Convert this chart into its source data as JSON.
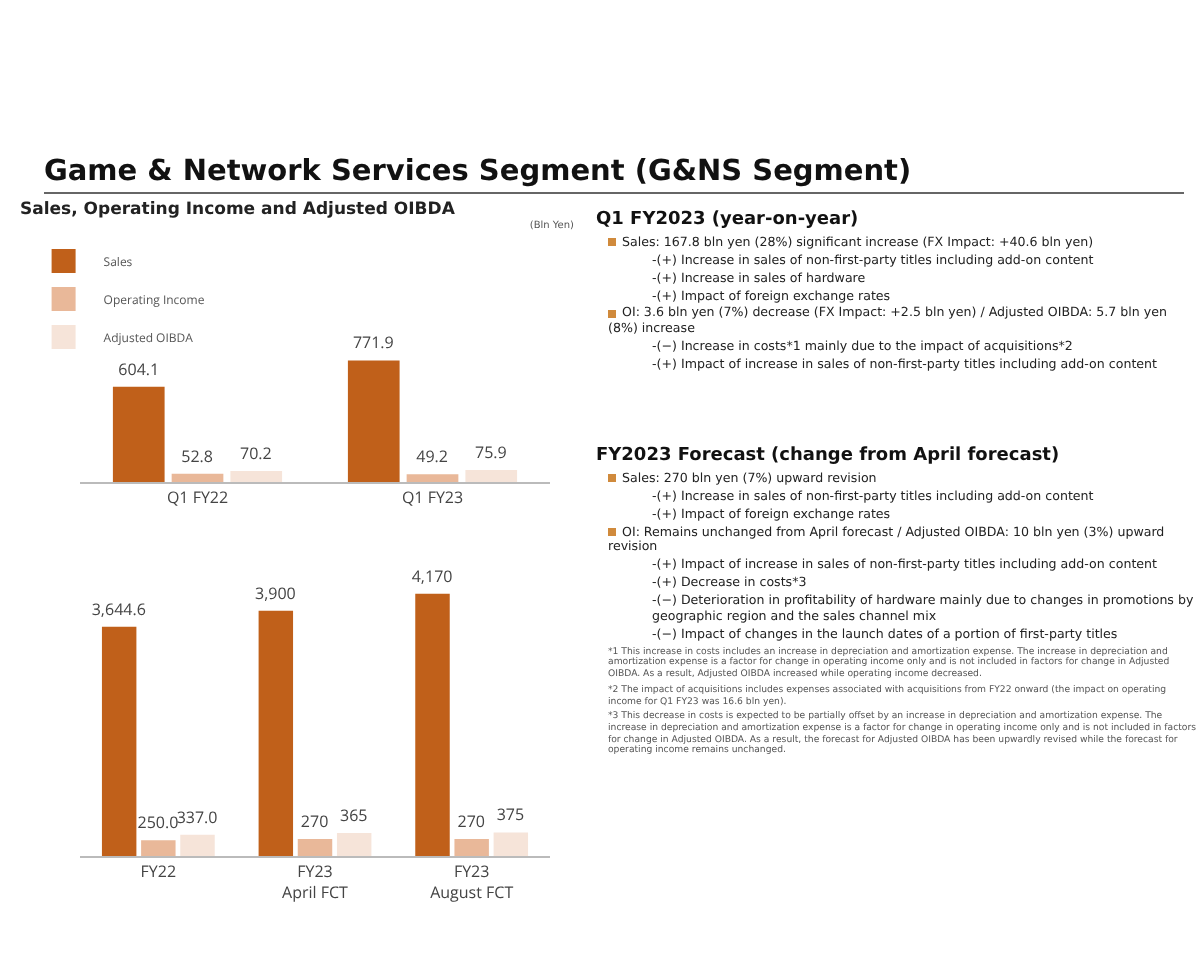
{
  "chart_data": [
    {
      "type": "bar",
      "title": "Game & Network Services Segment (G&NS Segment)",
      "subtitle": "Sales, Operating Income and Adjusted OIBDA",
      "annotations": [
        "(Bln Yen)"
      ],
      "categories": [
        "Q1 FY22",
        "Q1 FY23"
      ],
      "series": [
        {
          "name": "Sales",
          "color": "#c0601a",
          "values": [
            604.1,
            771.9
          ]
        },
        {
          "name": "Operating Income",
          "color": "#e9b899",
          "values": [
            52.8,
            49.2
          ]
        },
        {
          "name": "Adjusted OIBDA",
          "color": "#f6e4d9",
          "values": [
            70.2,
            75.9
          ]
        }
      ],
      "data_labels": true,
      "legend": "top left",
      "tick_labels": "x"
    },
    {
      "type": "bar",
      "categories": [
        "FY22",
        "FY23 April FCT",
        "FY23 August FCT"
      ],
      "series": [
        {
          "color": "#c0601a",
          "values": [
            3644.6,
            3900,
            4170
          ],
          "value_labels": [
            "3,644.6",
            "3,900",
            "4,170"
          ]
        },
        {
          "color": "#e9b899",
          "values": [
            250,
            270,
            270
          ],
          "value_labels": [
            "250.0",
            "270",
            "270"
          ]
        },
        {
          "color": "#f6e4d9",
          "values": [
            337,
            365,
            375
          ],
          "value_labels": [
            "337.0",
            "365",
            "375"
          ]
        }
      ],
      "tick_labels": "x"
    },
    {
      "type": "other",
      "title": "Q1 FY2023 (year-on-year)",
      "annotations": [
        "Sales: 167.8 bln yen (28%) significant increase (FX Impact: +40.6 bln yen)",
        "-(+) Increase in sales of non-first-party titles including add-on content",
        "-(+) Increase in sales of hardware",
        "-(+) Impact of foreign exchange rates",
        "OI: 3.6 bln yen (7%) decrease (FX Impact: +2.5 bln yen) / Adjusted OIBDA: 5.7 bln yen (8%) increase",
        "-(−) Increase in costs*1 mainly due to the impact of acquisitions*2",
        "-(+) Impact of increase in sales of non-first-party titles including add-on content"
      ]
    },
    {
      "type": "other",
      "title": "FY2023 Forecast (change from April forecast)",
      "annotations": [
        "Sales: 270 bln yen (7%) upward revision",
        "-(+) Increase in sales of non-first-party titles including add-on content",
        "-(+) Impact of foreign exchange rates",
        "OI: Remains unchanged from April forecast / Adjusted OIBDA: 10 bln yen (3%) upward revision",
        "-(+) Impact of increase in sales of non-first-party titles including add-on content",
        "-(+) Decrease in costs*3",
        "-(−) Deterioration in profitability of hardware mainly due to changes in promotions by geographic region and the sales channel mix",
        "-(−) Impact of changes in the launch dates of a portion of first-party titles",
        "*1 This increase in costs includes an increase in depreciation and amortization expense. The increase in depreciation and amortization expense is a factor for change in operating income only and is not included in factors for change in Adjusted OIBDA. As a result, Adjusted OIBDA increased while operating income decreased.",
        "*2 The impact of acquisitions includes expenses associated with acquisitions from FY22 onward (the impact on operating income for Q1 FY23 was 16.6 bln yen).",
        "*3 This decrease in costs is expected to be partially offset by an increase in depreciation and amortization expense. The increase in depreciation and amortization expense is a factor for change in operating income only and is not included in factors for change in Adjusted OIBDA. As a result, the forecast for Adjusted OIBDA has been upwardly revised while the forecast for operating income remains unchanged."
      ]
    }
  ]
}
